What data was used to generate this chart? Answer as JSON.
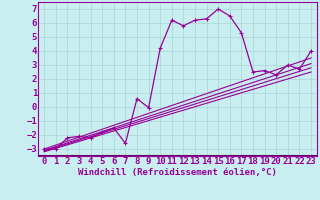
{
  "xlabel": "Windchill (Refroidissement éolien,°C)",
  "background_color": "#c8eef0",
  "grid_color": "#b0d8da",
  "line_color": "#990099",
  "axis_bottom_color": "#660066",
  "xlim": [
    -0.5,
    23.5
  ],
  "ylim": [
    -3.5,
    7.5
  ],
  "xticks": [
    0,
    1,
    2,
    3,
    4,
    5,
    6,
    7,
    8,
    9,
    10,
    11,
    12,
    13,
    14,
    15,
    16,
    17,
    18,
    19,
    20,
    21,
    22,
    23
  ],
  "yticks": [
    -3,
    -2,
    -1,
    0,
    1,
    2,
    3,
    4,
    5,
    6,
    7
  ],
  "main_series": {
    "x": [
      0,
      1,
      2,
      3,
      4,
      5,
      6,
      7,
      8,
      9,
      10,
      11,
      12,
      13,
      14,
      15,
      16,
      17,
      18,
      19,
      20,
      21,
      22,
      23
    ],
    "y": [
      -3,
      -3,
      -2.2,
      -2.1,
      -2.2,
      -1.8,
      -1.5,
      -2.6,
      0.6,
      -0.05,
      4.2,
      6.2,
      5.8,
      6.2,
      6.3,
      7.0,
      6.5,
      5.3,
      2.5,
      2.6,
      2.3,
      3.0,
      2.7,
      4.0
    ]
  },
  "linear_series": [
    {
      "x": [
        0,
        23
      ],
      "y": [
        -3.0,
        3.5
      ]
    },
    {
      "x": [
        0,
        23
      ],
      "y": [
        -3.1,
        3.1
      ]
    },
    {
      "x": [
        0,
        23
      ],
      "y": [
        -3.15,
        2.8
      ]
    },
    {
      "x": [
        0,
        23
      ],
      "y": [
        -3.2,
        2.5
      ]
    }
  ],
  "xlabel_fontsize": 6.5,
  "tick_fontsize": 6.5
}
